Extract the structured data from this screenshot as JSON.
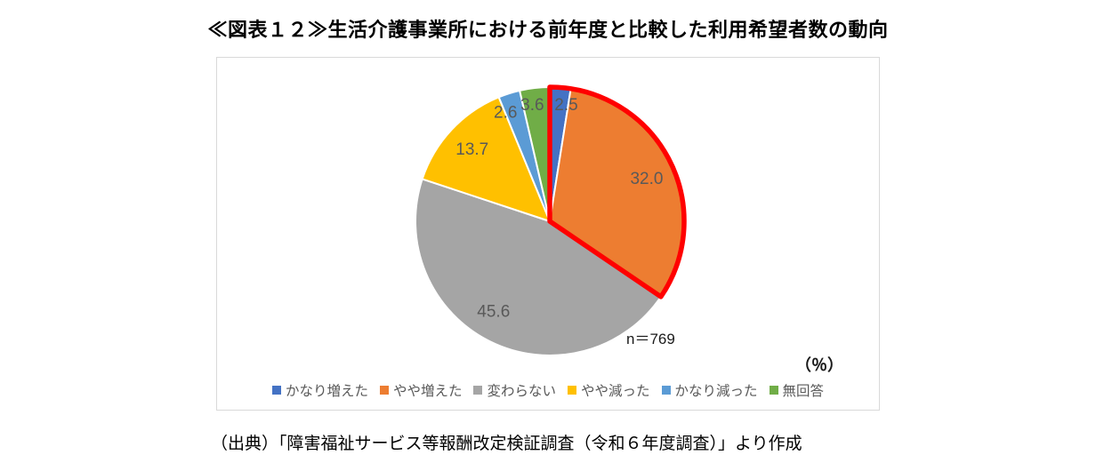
{
  "page": {
    "title": "≪図表１２≫生活介護事業所における前年度と比較した利用希望者数の動向",
    "source": "（出典）「障害福祉サービス等報酬改定検証調査（令和６年度調査）」より作成"
  },
  "chart_data": {
    "type": "pie",
    "title": "生活介護事業所における前年度と比較した利用希望者数の動向",
    "categories": [
      "かなり増えた",
      "やや増えた",
      "変わらない",
      "やや減った",
      "かなり減った",
      "無回答"
    ],
    "values": [
      2.5,
      32.0,
      45.6,
      13.7,
      2.6,
      3.6
    ],
    "unit": "%",
    "colors": [
      "#4472C4",
      "#ED7D31",
      "#A5A5A5",
      "#FFC000",
      "#5B9BD5",
      "#70AD47"
    ],
    "label_color": "#595959",
    "n_label": "n＝769",
    "unit_label": "（％）",
    "start_angle_deg": 0,
    "direction": "clockwise",
    "legend_position": "bottom",
    "highlight": {
      "indices": [
        0,
        1
      ],
      "outline_color": "#FF0000"
    }
  }
}
